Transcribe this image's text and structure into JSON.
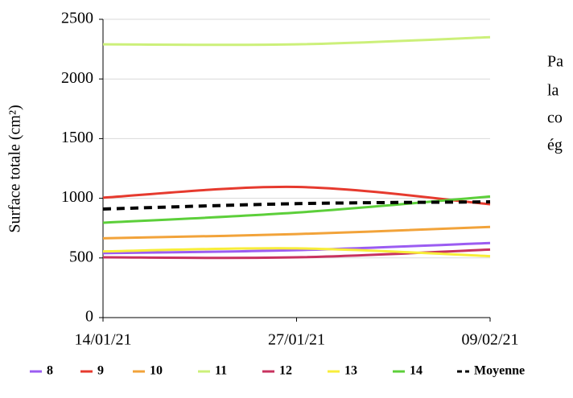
{
  "chart_data": {
    "type": "line",
    "y_label": "Surface totale (cm²)",
    "categories": [
      "14/01/21",
      "27/01/21",
      "09/02/21"
    ],
    "ylim": [
      0,
      2500
    ],
    "yticks": [
      0,
      500,
      1000,
      1500,
      2000,
      2500
    ],
    "grid": true,
    "series": [
      {
        "name": "8",
        "color": "#9b5cf2",
        "values": [
          540,
          565,
          625
        ]
      },
      {
        "name": "9",
        "color": "#e63a2e",
        "values": [
          1005,
          1095,
          950
        ]
      },
      {
        "name": "10",
        "color": "#f2a33a",
        "values": [
          665,
          700,
          760
        ]
      },
      {
        "name": "11",
        "color": "#ccf07a",
        "values": [
          2290,
          2290,
          2350
        ]
      },
      {
        "name": "12",
        "color": "#c8325f",
        "values": [
          505,
          505,
          570
        ]
      },
      {
        "name": "13",
        "color": "#f8ee3a",
        "values": [
          555,
          580,
          515
        ]
      },
      {
        "name": "14",
        "color": "#5ccf3a",
        "values": [
          795,
          880,
          1015
        ]
      },
      {
        "name": "Moyenne",
        "color": "#000000",
        "dashed": true,
        "values": [
          910,
          955,
          970
        ]
      }
    ]
  },
  "side_text": [
    "Pa",
    "la",
    "co",
    "ég"
  ]
}
